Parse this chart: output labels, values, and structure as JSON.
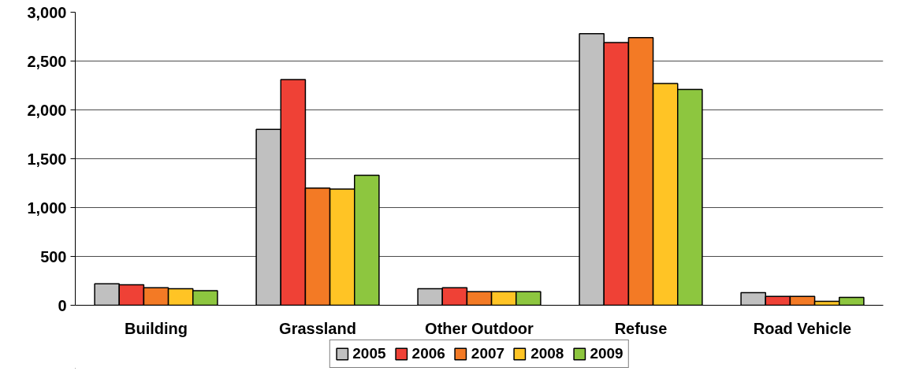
{
  "chart_data": {
    "type": "bar",
    "categories": [
      "Building",
      "Grassland",
      "Other Outdoor",
      "Refuse",
      "Road Vehicle"
    ],
    "series": [
      {
        "name": "2005",
        "color": "#c0c0c0",
        "values": [
          220,
          1800,
          170,
          2780,
          130
        ]
      },
      {
        "name": "2006",
        "color": "#ef4136",
        "values": [
          210,
          2310,
          180,
          2690,
          90
        ]
      },
      {
        "name": "2007",
        "color": "#f37a25",
        "values": [
          180,
          1200,
          140,
          2740,
          90
        ]
      },
      {
        "name": "2008",
        "color": "#ffc425",
        "values": [
          170,
          1190,
          140,
          2270,
          40
        ]
      },
      {
        "name": "2009",
        "color": "#8dc63f",
        "values": [
          150,
          1330,
          140,
          2210,
          80
        ]
      }
    ],
    "ylim": [
      0,
      3000
    ],
    "yticks": [
      0,
      {
        "value": 500,
        "label": "500"
      },
      {
        "value": 1000,
        "label": "1,000"
      },
      {
        "value": 1500,
        "label": "1,500"
      },
      {
        "value": 2000,
        "label": "2,000"
      },
      {
        "value": 2500,
        "label": "2,500"
      },
      {
        "value": 3000,
        "label": "3,000"
      }
    ],
    "grid": "y",
    "legend": "bottom"
  }
}
